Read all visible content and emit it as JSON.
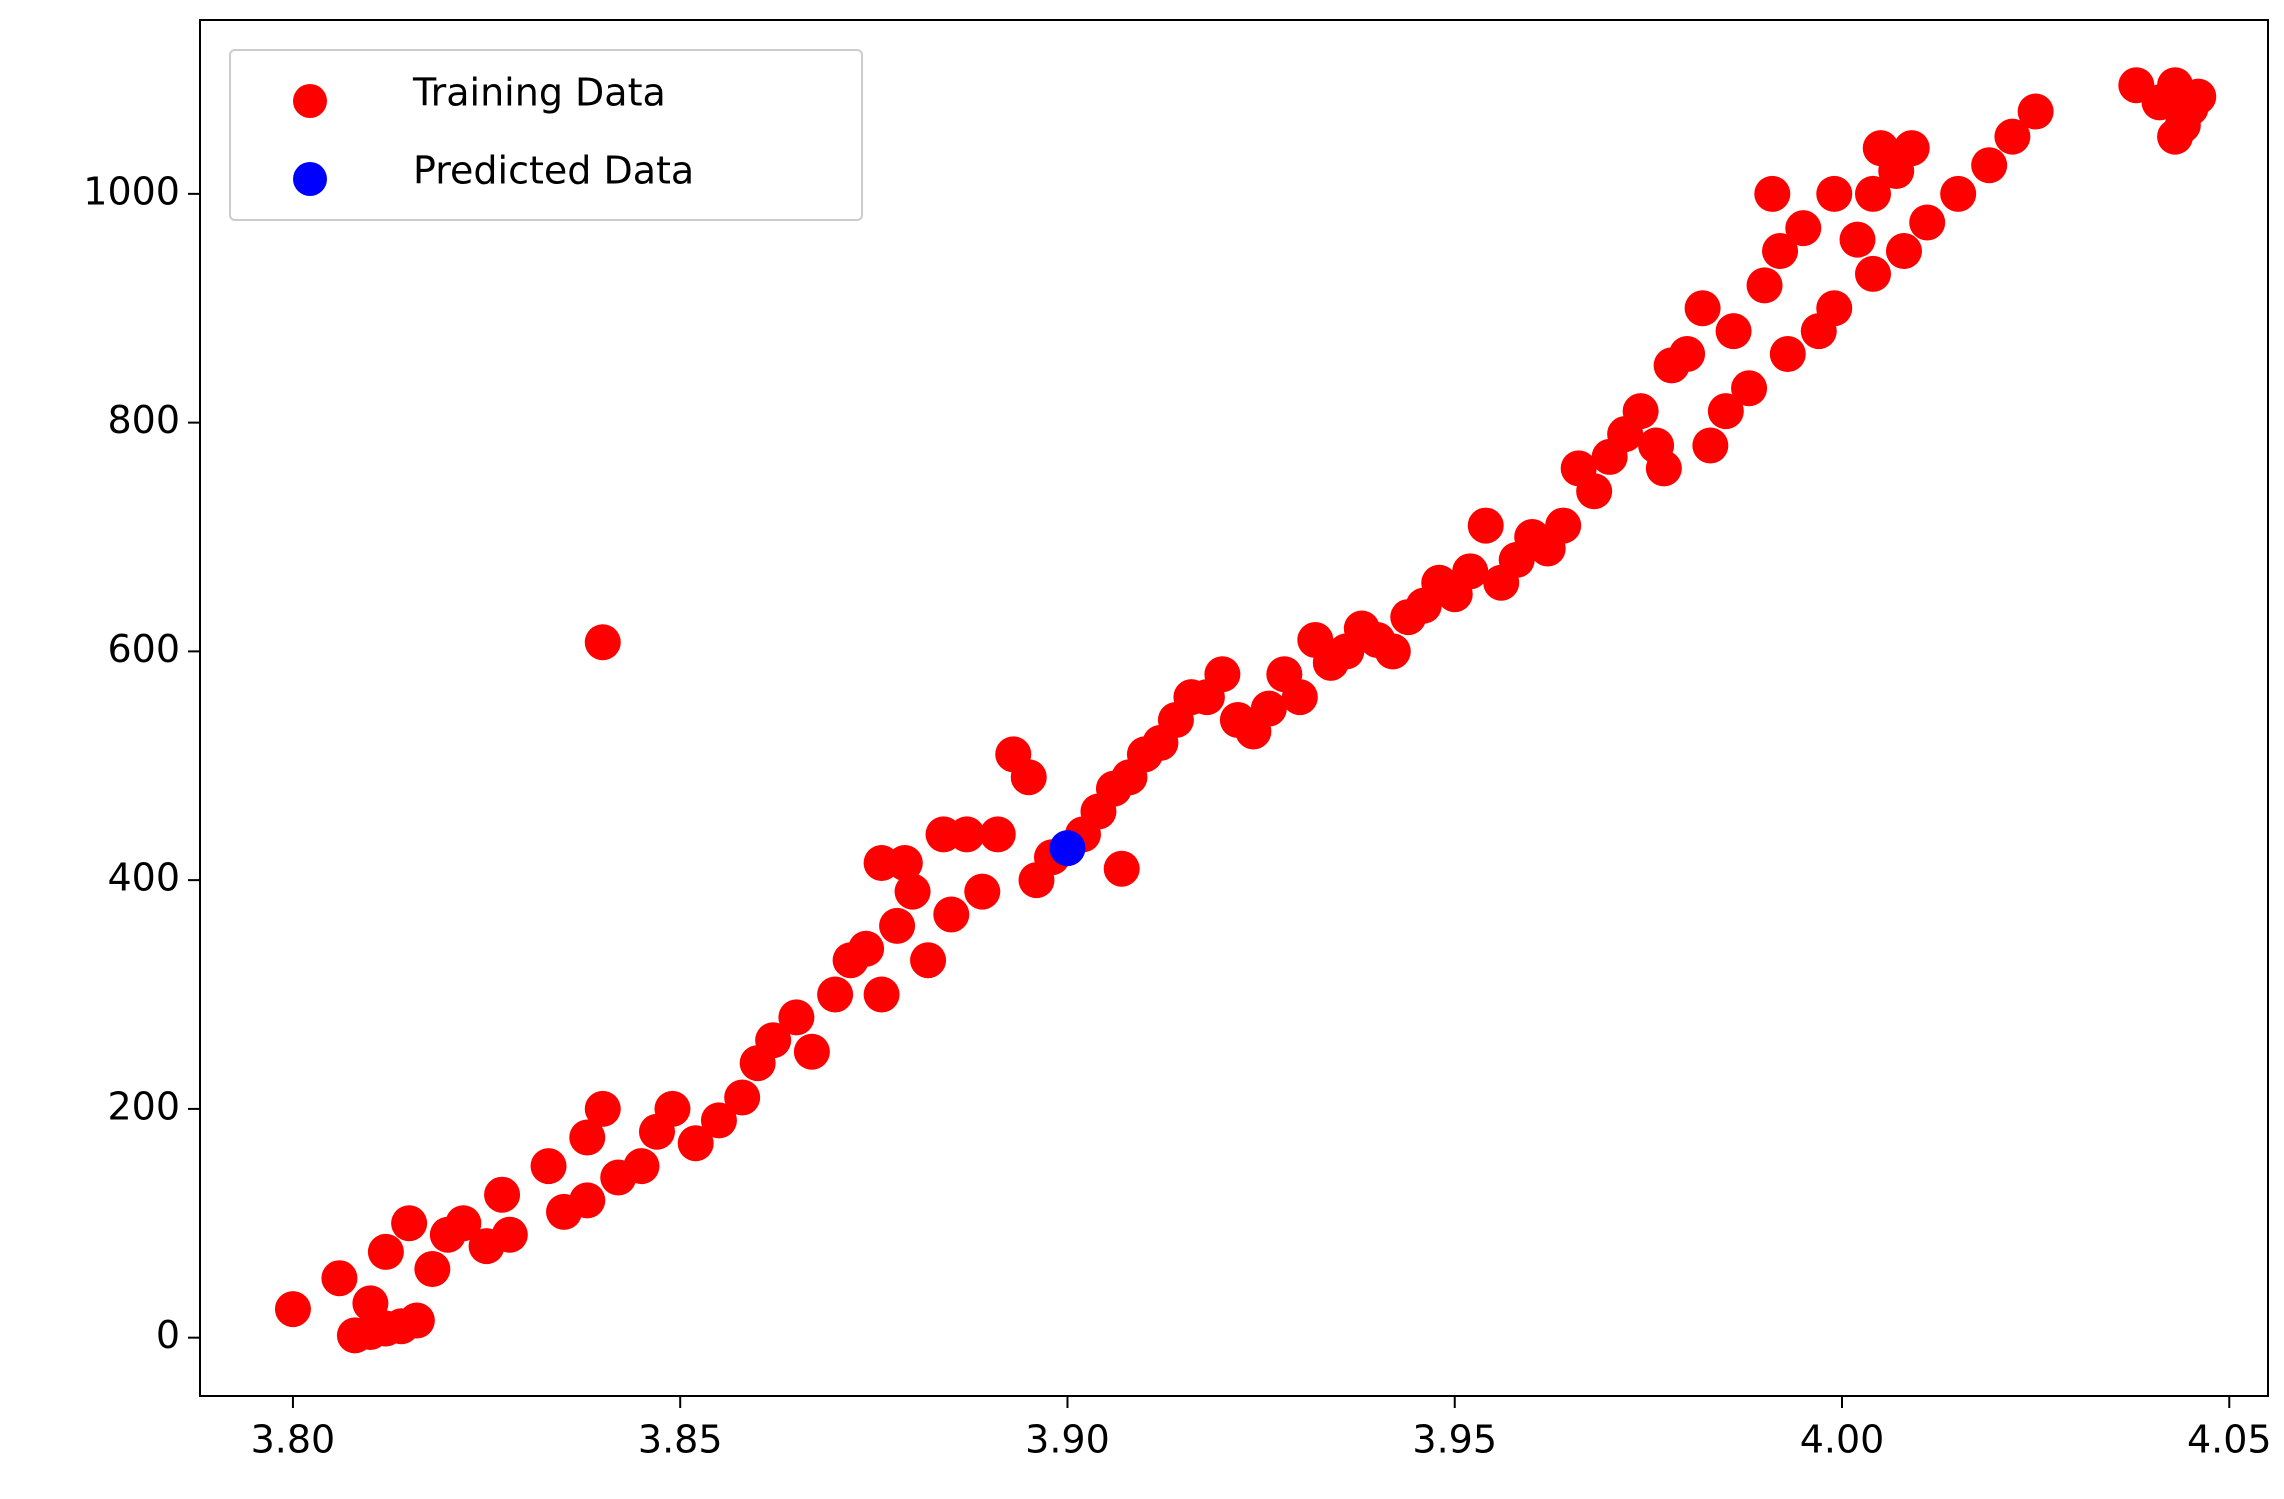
{
  "chart_data": {
    "type": "scatter",
    "series": [
      {
        "name": "Training Data",
        "color": "#ff0000",
        "x": [
          3.8,
          3.806,
          3.808,
          3.81,
          3.812,
          3.814,
          3.816,
          3.81,
          3.812,
          3.815,
          3.818,
          3.82,
          3.822,
          3.825,
          3.827,
          3.828,
          3.833,
          3.835,
          3.838,
          3.838,
          3.84,
          3.84,
          3.842,
          3.845,
          3.847,
          3.849,
          3.852,
          3.855,
          3.858,
          3.86,
          3.862,
          3.865,
          3.867,
          3.87,
          3.872,
          3.874,
          3.876,
          3.878,
          3.876,
          3.879,
          3.88,
          3.882,
          3.885,
          3.884,
          3.887,
          3.889,
          3.891,
          3.893,
          3.895,
          3.896,
          3.898,
          3.902,
          3.904,
          3.907,
          3.906,
          3.908,
          3.91,
          3.912,
          3.914,
          3.916,
          3.918,
          3.92,
          3.922,
          3.924,
          3.926,
          3.928,
          3.93,
          3.932,
          3.934,
          3.936,
          3.938,
          3.94,
          3.942,
          3.944,
          3.946,
          3.948,
          3.95,
          3.952,
          3.954,
          3.956,
          3.958,
          3.96,
          3.962,
          3.964,
          3.966,
          3.968,
          3.97,
          3.972,
          3.974,
          3.976,
          3.977,
          3.978,
          3.98,
          3.982,
          3.983,
          3.985,
          3.986,
          3.988,
          3.99,
          3.991,
          3.992,
          3.993,
          3.995,
          3.997,
          3.999,
          3.999,
          4.002,
          4.004,
          4.004,
          4.005,
          4.007,
          4.008,
          4.009,
          4.011,
          4.015,
          4.019,
          4.022,
          4.025,
          4.038,
          4.041,
          4.043,
          4.044,
          4.045,
          4.046,
          4.043
        ],
        "values": [
          25,
          52,
          2,
          5,
          8,
          10,
          15,
          30,
          75,
          100,
          60,
          90,
          100,
          80,
          125,
          90,
          150,
          110,
          120,
          175,
          200,
          608,
          140,
          150,
          180,
          200,
          170,
          190,
          210,
          240,
          260,
          280,
          250,
          300,
          330,
          340,
          300,
          360,
          415,
          415,
          390,
          330,
          370,
          440,
          440,
          390,
          440,
          510,
          490,
          400,
          420,
          440,
          460,
          410,
          480,
          490,
          510,
          520,
          540,
          560,
          560,
          580,
          540,
          530,
          550,
          580,
          560,
          610,
          590,
          600,
          620,
          610,
          600,
          630,
          640,
          660,
          650,
          670,
          710,
          660,
          680,
          700,
          690,
          710,
          760,
          740,
          770,
          790,
          810,
          780,
          760,
          850,
          860,
          900,
          780,
          810,
          880,
          830,
          920,
          1000,
          950,
          860,
          970,
          880,
          1000,
          900,
          960,
          1000,
          930,
          1040,
          1020,
          950,
          1040,
          975,
          1000,
          1025,
          1050,
          1072,
          1095,
          1080,
          1095,
          1060,
          1075,
          1085,
          1050
        ]
      },
      {
        "name": "Predicted Data",
        "color": "#0000ff",
        "x": [
          3.9
        ],
        "values": [
          428
        ]
      }
    ],
    "xlim": [
      3.788,
      4.055
    ],
    "ylim": [
      -51,
      1152
    ],
    "xticks": [
      {
        "value": 3.8,
        "label": "3.80"
      },
      {
        "value": 3.85,
        "label": "3.85"
      },
      {
        "value": 3.9,
        "label": "3.90"
      },
      {
        "value": 3.95,
        "label": "3.95"
      },
      {
        "value": 4.0,
        "label": "4.00"
      },
      {
        "value": 4.05,
        "label": "4.05"
      }
    ],
    "yticks": [
      0,
      200,
      400,
      600,
      800,
      1000
    ],
    "legend": "upper left"
  }
}
